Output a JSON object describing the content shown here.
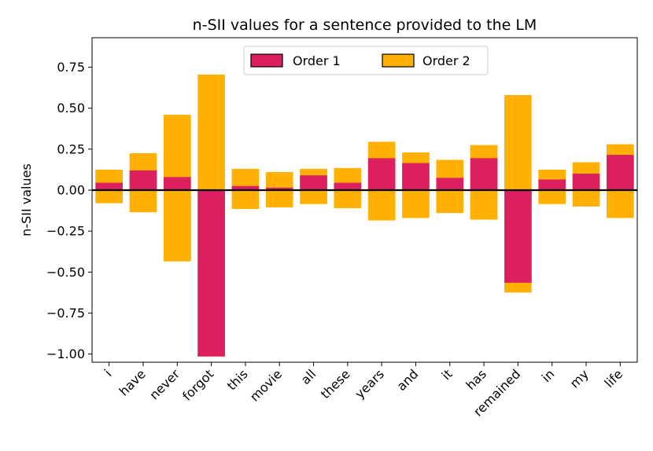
{
  "chart_data": {
    "type": "bar",
    "title": "n-SII values for a sentence provided to the LM",
    "xlabel": "",
    "ylabel": "n-SII values",
    "ylim": [
      -1.05,
      0.93
    ],
    "yticks": [
      -1.0,
      -0.75,
      -0.5,
      -0.25,
      0.0,
      0.25,
      0.5,
      0.75
    ],
    "ytick_labels": [
      "−1.00",
      "−0.75",
      "−0.50",
      "−0.25",
      "0.00",
      "0.25",
      "0.50",
      "0.75"
    ],
    "categories": [
      "i",
      "have",
      "never",
      "forgot",
      "this",
      "movie",
      "all",
      "these",
      "years",
      "and",
      "it",
      "has",
      "remained",
      "in",
      "my",
      "life"
    ],
    "series": [
      {
        "name": "Order 2",
        "color": "#FFB000",
        "positive": [
          0.125,
          0.225,
          0.46,
          0.705,
          0.13,
          0.11,
          0.13,
          0.135,
          0.295,
          0.23,
          0.185,
          0.275,
          0.58,
          0.125,
          0.17,
          0.28
        ],
        "negative": [
          -0.08,
          -0.135,
          -0.435,
          -1.015,
          -0.115,
          -0.105,
          -0.085,
          -0.11,
          -0.185,
          -0.17,
          -0.14,
          -0.18,
          -0.625,
          -0.085,
          -0.1,
          -0.17
        ]
      },
      {
        "name": "Order 1",
        "color": "#DC1F5E",
        "values": [
          0.045,
          0.12,
          0.08,
          -1.015,
          0.025,
          0.015,
          0.09,
          0.045,
          0.195,
          0.165,
          0.075,
          0.195,
          -0.565,
          0.065,
          0.1,
          0.215
        ]
      }
    ],
    "legend": [
      {
        "name": "Order 1",
        "color": "#DC1F5E"
      },
      {
        "name": "Order 2",
        "color": "#FFB000"
      }
    ],
    "legend_position": "top-center",
    "grid": false
  }
}
